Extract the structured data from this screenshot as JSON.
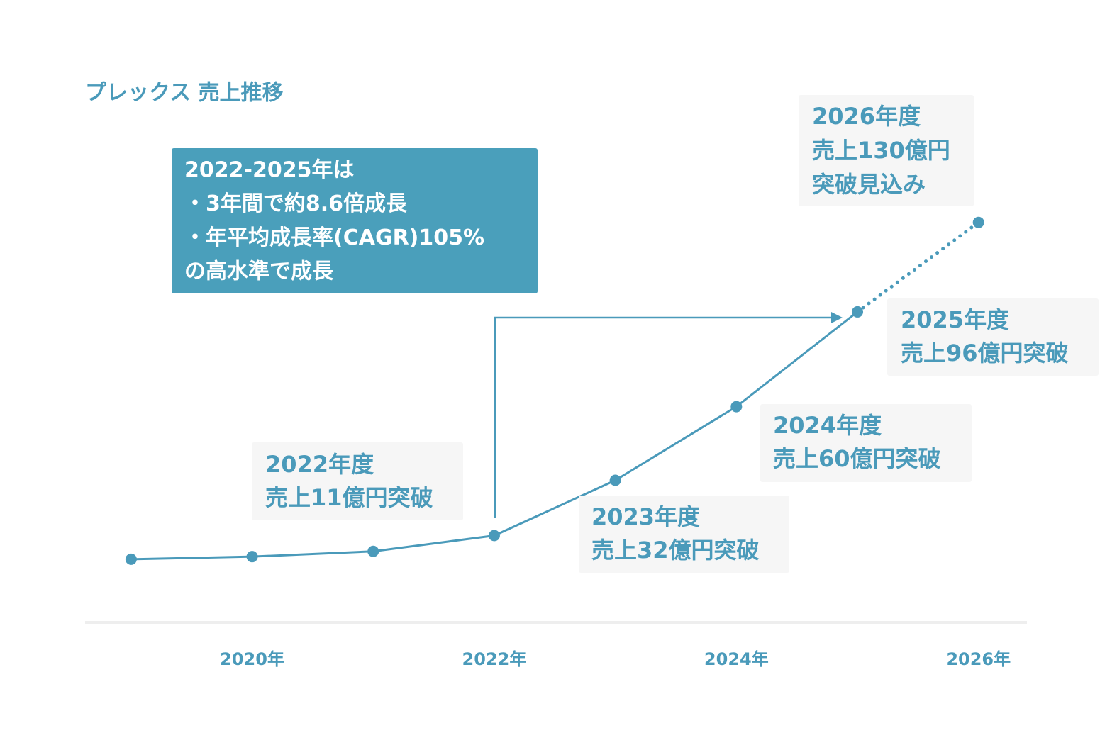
{
  "chart_data": {
    "type": "line",
    "title": "プレックス 売上推移",
    "x": [
      2019,
      2020,
      2021,
      2022,
      2023,
      2024,
      2025,
      2026
    ],
    "series": [
      {
        "color": "#4a9aba",
        "style": "solid",
        "values": [
          2,
          3,
          5,
          11,
          32,
          60,
          96,
          null
        ]
      },
      {
        "color": "#4a9aba",
        "style": "dotted",
        "values": [
          null,
          null,
          null,
          null,
          null,
          null,
          96,
          130
        ]
      }
    ],
    "xlim": [
      2018.62,
      2026.4
    ],
    "xticks": [
      {
        "value": 2020,
        "label": "2020年"
      },
      {
        "value": 2022,
        "label": "2022年"
      },
      {
        "value": 2024,
        "label": "2024年"
      },
      {
        "value": 2026,
        "label": "2026年"
      }
    ],
    "ylim": [
      -22,
      145
    ],
    "annotations": [
      {
        "lines": [
          "2022-2025年は",
          "・3年間で約8.6倍成長",
          "・年平均成長率(CAGR)105%",
          "の高水準で成長"
        ]
      },
      {
        "lines": [
          "2022年度",
          "売上11億円突破"
        ]
      },
      {
        "lines": [
          "2023年度",
          "売上32億円突破"
        ]
      },
      {
        "lines": [
          "2024年度",
          "売上60億円突破"
        ]
      },
      {
        "lines": [
          "2025年度",
          "売上96億円突破"
        ]
      },
      {
        "lines": [
          "2026年度",
          "売上130億円",
          "突破見込み"
        ]
      }
    ]
  }
}
